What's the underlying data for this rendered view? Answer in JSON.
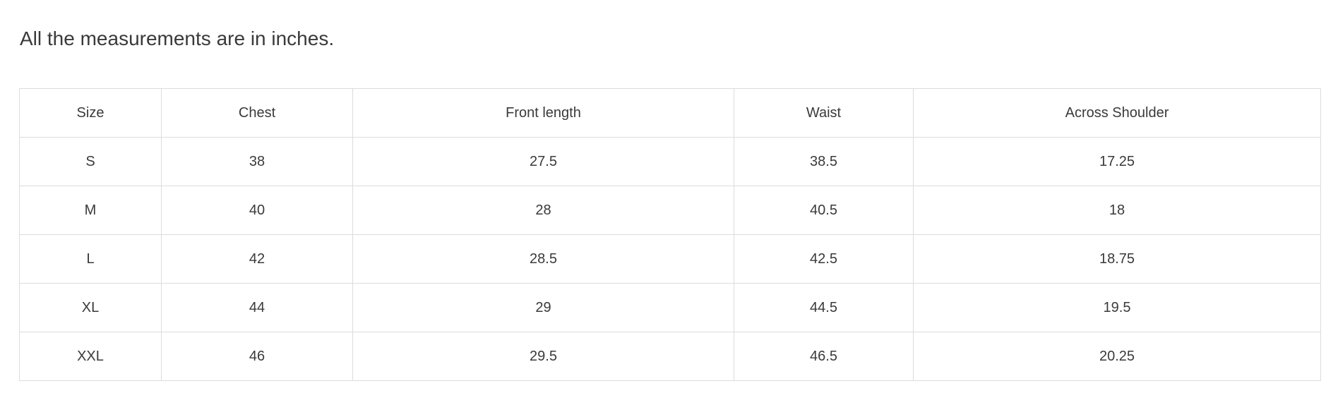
{
  "note": "All the measurements are in inches.",
  "table": {
    "headers": [
      "Size",
      "Chest",
      "Front length",
      "Waist",
      "Across Shoulder"
    ],
    "rows": [
      [
        "S",
        "38",
        "27.5",
        "38.5",
        "17.25"
      ],
      [
        "M",
        "40",
        "28",
        "40.5",
        "18"
      ],
      [
        "L",
        "42",
        "28.5",
        "42.5",
        "18.75"
      ],
      [
        "XL",
        "44",
        "29",
        "44.5",
        "19.5"
      ],
      [
        "XXL",
        "46",
        "29.5",
        "46.5",
        "20.25"
      ]
    ]
  }
}
